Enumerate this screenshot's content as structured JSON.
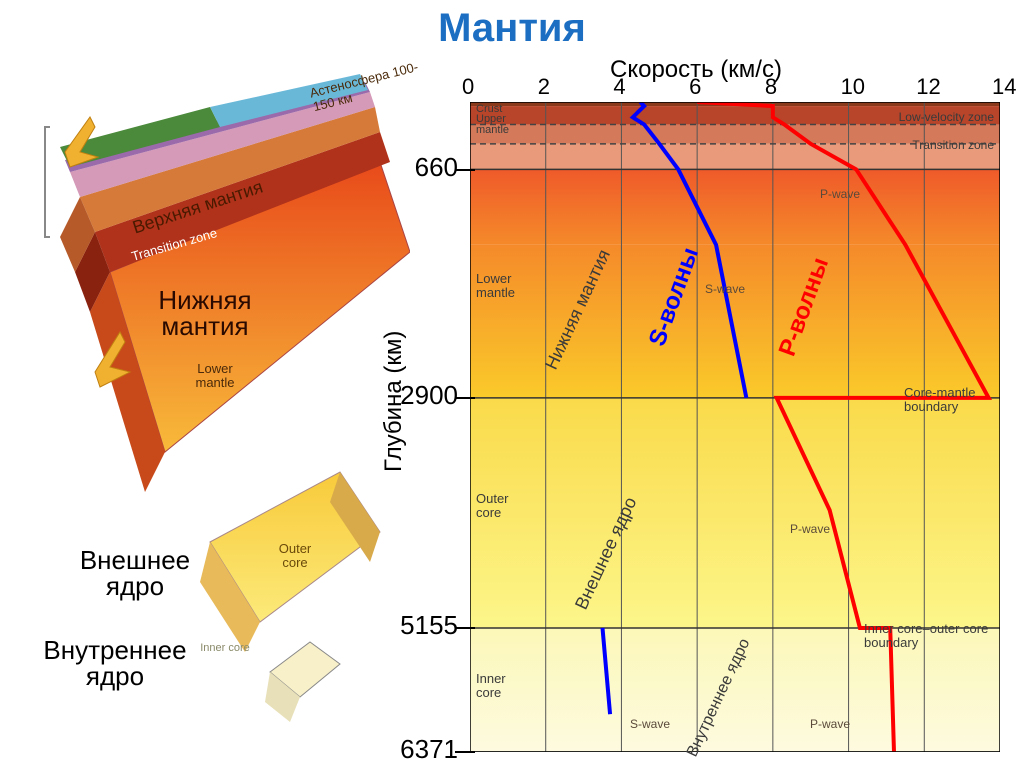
{
  "title": "Мантия",
  "xaxis": {
    "title": "Скорость (км/с)",
    "ticks": [
      0,
      2,
      4,
      6,
      8,
      10,
      12,
      14
    ],
    "min": 0,
    "max": 14
  },
  "yaxis": {
    "title": "Глубина (км)",
    "ticks": [
      660,
      2900,
      5155,
      6371
    ],
    "min": 0,
    "max": 6371
  },
  "depth_bands": [
    {
      "from": 0,
      "to": 40,
      "color": "#8a3a1a"
    },
    {
      "from": 40,
      "to": 220,
      "color": "#b8452a"
    },
    {
      "from": 220,
      "to": 410,
      "color": "#d47a5a"
    },
    {
      "from": 410,
      "to": 660,
      "color": "#e89a7a"
    },
    {
      "from": 660,
      "to": 1400,
      "gradient": [
        "#ef5a2a",
        "#f58a2a"
      ]
    },
    {
      "from": 1400,
      "to": 2900,
      "gradient": [
        "#f58a2a",
        "#faca2a"
      ]
    },
    {
      "from": 2900,
      "to": 5155,
      "gradient": [
        "#fada4a",
        "#fcf68a"
      ]
    },
    {
      "from": 5155,
      "to": 6371,
      "gradient": [
        "#fcf8b8",
        "#fdfae0"
      ]
    }
  ],
  "boundaries": {
    "low_velocity": {
      "depth": 220,
      "label": "Low-velocity zone"
    },
    "transition": {
      "depth": 410,
      "label": "Transition zone"
    },
    "core_mantle": {
      "depth": 2900,
      "label": "Core-mantle boundary"
    },
    "inner_outer": {
      "depth": 5155,
      "label": "Inner core–outer core boundary"
    }
  },
  "layer_labels_chart": {
    "crust": "Crust",
    "upper_mantle": "Upper mantle",
    "lower_mantle": "Lower mantle",
    "outer_core": "Outer core",
    "inner_core": "Inner core"
  },
  "rotated_labels": {
    "lower_mantle_ru": "Нижняя мантия",
    "outer_core_ru": "Внешнее ядро",
    "inner_core_ru": "Внутреннее ядро"
  },
  "wave_labels": {
    "s_ru": "S-волны",
    "p_ru": "Р-волны",
    "s_en": "S-wave",
    "p_en": "P-wave"
  },
  "s_wave": {
    "color": "#0000ff",
    "width": 4,
    "points": [
      [
        4.5,
        0
      ],
      [
        4.6,
        40
      ],
      [
        4.3,
        150
      ],
      [
        4.6,
        220
      ],
      [
        5.0,
        410
      ],
      [
        5.5,
        660
      ],
      [
        6.5,
        1400
      ],
      [
        7.3,
        2900
      ]
    ]
  },
  "s_wave_inner": {
    "color": "#0000ff",
    "width": 4,
    "points": [
      [
        3.5,
        5155
      ],
      [
        3.7,
        6000
      ]
    ]
  },
  "p_wave": {
    "color": "#ff0000",
    "width": 4,
    "points": [
      [
        6.0,
        0
      ],
      [
        8.0,
        40
      ],
      [
        8.0,
        150
      ],
      [
        8.3,
        220
      ],
      [
        9.0,
        410
      ],
      [
        10.2,
        660
      ],
      [
        11.5,
        1400
      ],
      [
        13.7,
        2900
      ],
      [
        8.1,
        2900
      ],
      [
        9.5,
        4000
      ],
      [
        10.3,
        5155
      ],
      [
        11.1,
        5155
      ],
      [
        11.2,
        6371
      ]
    ]
  },
  "wedge": {
    "asthenosphere": "Астеносфера 100-150 км",
    "upper_mantle_ru": "Верхняя мантия",
    "transition_zone": "Transition zone",
    "lower_mantle_ru": "Нижняя мантия",
    "lower_mantle_en": "Lower mantle",
    "outer_core_ru": "Внешнее ядро",
    "outer_core_en": "Outer core",
    "inner_core_ru": "Внутреннее ядро",
    "inner_core_en": "Inner core"
  },
  "colors": {
    "crust_purple": "#9a6aaa",
    "crust_pink": "#d49ab8",
    "surface_green": "#4a8a3a",
    "water_blue": "#6ab8d8",
    "upper_mantle": "#d67a3a",
    "transition": "#b0321a",
    "lower_mantle_top": "#e84a1a",
    "lower_mantle_bot": "#f8ba3a",
    "outer_core_top": "#f8ca3a",
    "outer_core_bot": "#fcea7a",
    "inner_core": "#f8f0c8"
  }
}
